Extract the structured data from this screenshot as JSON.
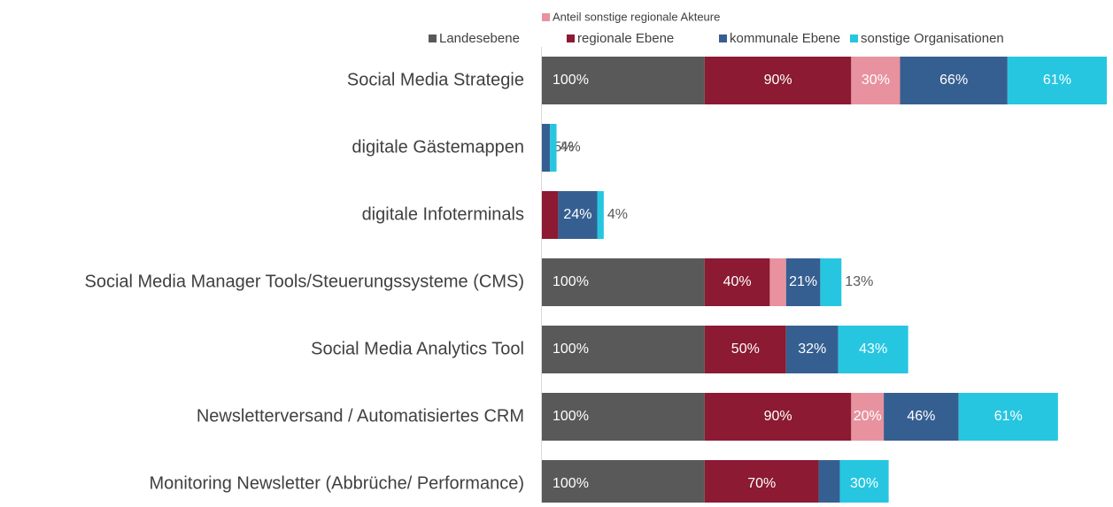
{
  "chart_data": {
    "type": "stacked-bar-horizontal",
    "categories": [
      "Social Media Strategie",
      "digitale Gästemappen",
      "digitale Infoterminals",
      "Social Media Manager Tools/Steuerungssysteme (CMS)",
      "Social Media Analytics Tool",
      "Newsletterversand / Automatisiertes CRM",
      "Monitoring Newsletter (Abbrüche/ Performance)"
    ],
    "series": [
      {
        "name": "Landesebene",
        "color": "#595959",
        "values": [
          100,
          null,
          null,
          100,
          100,
          100,
          100
        ],
        "value_labels": [
          "100%",
          null,
          null,
          "100%",
          "100%",
          "100%",
          "100%"
        ]
      },
      {
        "name": "regionale Ebene",
        "color": "#8b1a32",
        "values": [
          90,
          null,
          10,
          40,
          50,
          90,
          70
        ],
        "value_labels": [
          "90%",
          null,
          "10%",
          "40%",
          "50%",
          "90%",
          "70%"
        ]
      },
      {
        "name": "Anteil sonstige regionale Akteure",
        "color": "#e8929f",
        "values": [
          30,
          null,
          null,
          10,
          null,
          20,
          null
        ],
        "value_labels": [
          "30%",
          null,
          null,
          "10%",
          null,
          "20%",
          null
        ]
      },
      {
        "name": "kommunale Ebene",
        "color": "#365f91",
        "values": [
          66,
          5,
          24,
          21,
          32,
          46,
          13
        ],
        "value_labels": [
          "66%",
          "5%",
          "24%",
          "21%",
          "32%",
          "46%",
          "13%"
        ]
      },
      {
        "name": "sonstige Organisationen",
        "color": "#26c6e0",
        "values": [
          61,
          4,
          4,
          13,
          43,
          61,
          30
        ],
        "value_labels": [
          "61%",
          "4%",
          "4%",
          "13%",
          "43%",
          "61%",
          "30%"
        ]
      }
    ]
  }
}
